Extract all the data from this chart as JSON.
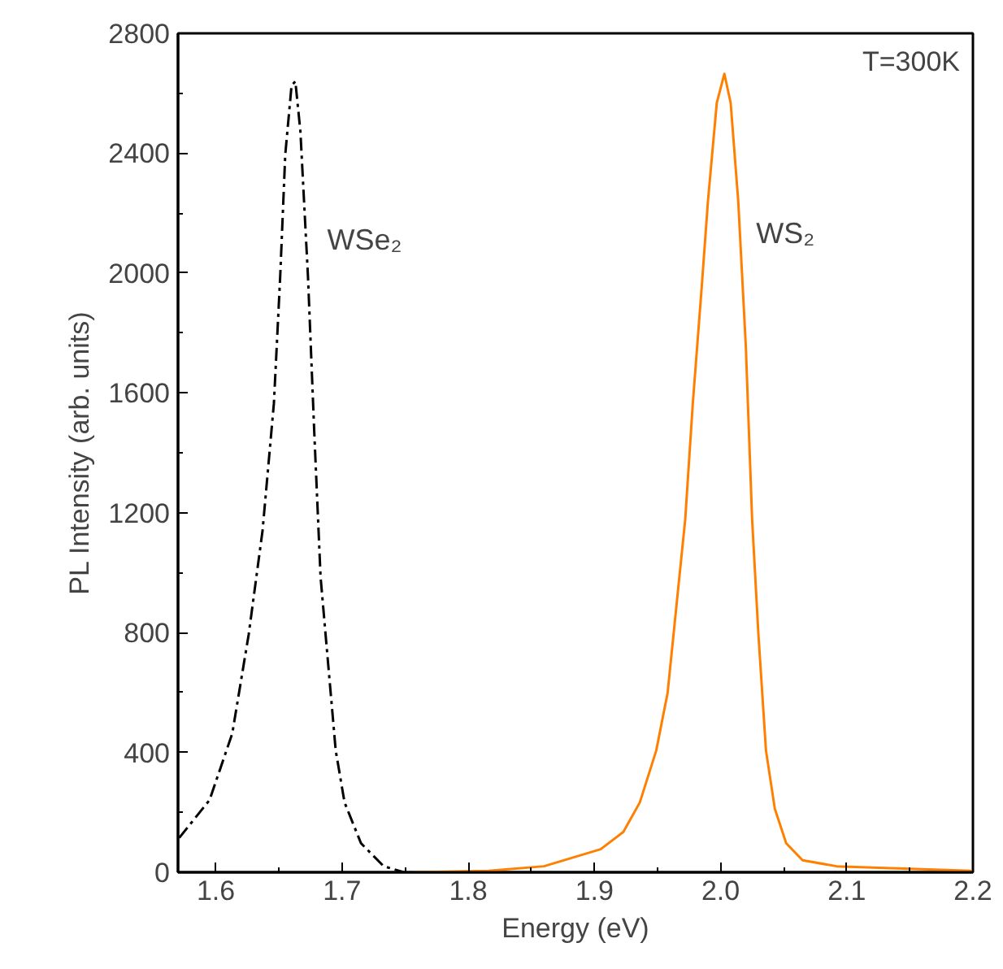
{
  "chart_data": {
    "type": "line",
    "xlabel": "Energy (eV)",
    "ylabel": "PL Intensity (arb. units)",
    "annotations": [
      "T=300K"
    ],
    "xlim": [
      1.57,
      2.2
    ],
    "ylim": [
      0,
      2800
    ],
    "xticks": [
      1.6,
      1.7,
      1.8,
      1.9,
      {
        "value": 2.0,
        "label": "2.0"
      },
      2.1,
      2.2
    ],
    "yticks": [
      0,
      400,
      800,
      1200,
      1600,
      2000,
      2400,
      2800
    ],
    "grid": false,
    "legend": false,
    "series": [
      {
        "name": "WSe₂",
        "color": "#000000",
        "line_style": "dashed",
        "x": [
          1.571,
          1.595,
          1.613,
          1.626,
          1.637,
          1.646,
          1.651,
          1.655,
          1.66,
          1.663,
          1.667,
          1.673,
          1.678,
          1.683,
          1.689,
          1.695,
          1.702,
          1.715,
          1.733,
          1.749
        ],
        "values": [
          115,
          241,
          463,
          793,
          1140,
          1565,
          1989,
          2395,
          2626,
          2640,
          2473,
          1989,
          1468,
          985,
          695,
          406,
          233,
          97,
          20,
          0
        ]
      },
      {
        "name": "WS₂",
        "color": "#ff8000",
        "line_style": "solid",
        "x": [
          1.757,
          1.816,
          1.86,
          1.905,
          1.923,
          1.936,
          1.949,
          1.958,
          1.965,
          1.972,
          1.978,
          1.985,
          1.99,
          1.997,
          2.003,
          2.008,
          2.014,
          2.02,
          2.025,
          2.03,
          2.036,
          2.043,
          2.052,
          2.065,
          2.092,
          2.199
        ],
        "values": [
          0,
          5,
          20,
          77,
          135,
          233,
          406,
          598,
          888,
          1178,
          1565,
          1950,
          2240,
          2568,
          2665,
          2568,
          2240,
          1757,
          1178,
          793,
          406,
          212,
          97,
          40,
          20,
          5
        ]
      }
    ]
  }
}
